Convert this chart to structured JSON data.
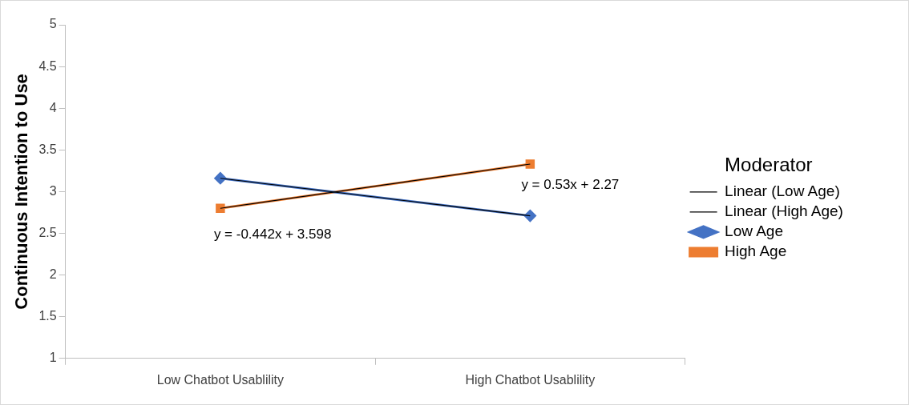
{
  "chart_data": {
    "type": "line",
    "categories": [
      "Low Chatbot Usablility",
      "High Chatbot Usablility"
    ],
    "series": [
      {
        "name": "Low Age",
        "color": "#4472c4",
        "marker": "diamond",
        "values": [
          3.16,
          2.71
        ]
      },
      {
        "name": "High Age",
        "color": "#ed7d31",
        "marker": "square",
        "values": [
          2.8,
          3.33
        ]
      },
      {
        "name": "Linear (Low Age)",
        "color": "#000000",
        "marker": "none",
        "values": [
          3.16,
          2.71
        ]
      },
      {
        "name": "Linear (High Age)",
        "color": "#000000",
        "marker": "none",
        "values": [
          2.8,
          3.33
        ]
      }
    ],
    "ylabel": "Continuous Intention to Use",
    "ylim": [
      1,
      5
    ],
    "yticks": [
      1,
      1.5,
      2,
      2.5,
      3,
      3.5,
      4,
      4.5,
      5
    ],
    "grid": false,
    "legend": "right",
    "legend_title": "Moderator",
    "annotations": [
      "y = -0.442x + 3.598",
      "y = 0.53x + 2.27"
    ]
  }
}
